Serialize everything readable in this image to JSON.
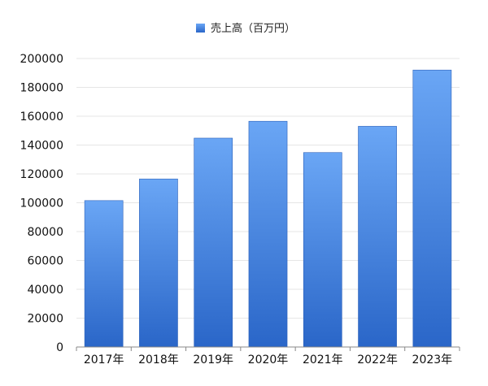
{
  "chart_data": {
    "type": "bar",
    "categories": [
      "2017年",
      "2018年",
      "2019年",
      "2020年",
      "2021年",
      "2022年",
      "2023年"
    ],
    "series": [
      {
        "name": "売上高（百万円）",
        "values": [
          101500,
          116500,
          144800,
          156500,
          134800,
          153000,
          192000
        ]
      }
    ],
    "ylim": [
      0,
      200000
    ],
    "yticks": [
      0,
      20000,
      40000,
      60000,
      80000,
      100000,
      120000,
      140000,
      160000,
      180000,
      200000
    ],
    "grid": true,
    "legend_position": "top-center",
    "colors": {
      "bar_top": "#6aa6f5",
      "bar_bottom": "#2a66c8",
      "bar_stroke": "#2a5fb8",
      "grid": "#e6e6e6",
      "axis": "#888888"
    }
  }
}
